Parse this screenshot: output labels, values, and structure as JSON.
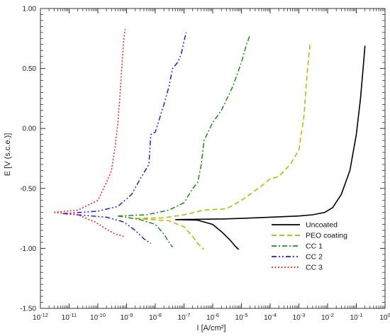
{
  "chart_data": {
    "type": "line",
    "title": "",
    "xlabel": "I [A/cm²]",
    "ylabel": "E [V (s.c.e.)]",
    "xscale": "log",
    "xlim": [
      1e-12,
      1
    ],
    "ylim": [
      -1.5,
      1.0
    ],
    "grid": false,
    "legend_position": "lower-right",
    "x_tick_labels": [
      "10-12",
      "10-11",
      "10-10",
      "10-9",
      "10-8",
      "10-7",
      "10-6",
      "10-5",
      "10-4",
      "10-3",
      "10-2",
      "10-1",
      "100"
    ],
    "y_tick_labels": [
      "1.00",
      "0.50",
      "0.00",
      "-0.50",
      "-1.00",
      "-1.50"
    ],
    "y_tick_values": [
      1.0,
      0.5,
      0.0,
      -0.5,
      -1.0,
      -1.5
    ],
    "series": [
      {
        "name": "Uncoated",
        "color": "#000000",
        "dash": "solid",
        "points": [
          [
            5e-08,
            -0.76
          ],
          [
            2e-06,
            -0.755
          ],
          [
            1e-05,
            -0.75
          ],
          [
            0.0001,
            -0.74
          ],
          [
            0.001,
            -0.73
          ],
          [
            0.003,
            -0.72
          ],
          [
            0.008,
            -0.7
          ],
          [
            0.015,
            -0.66
          ],
          [
            0.03,
            -0.55
          ],
          [
            0.06,
            -0.35
          ],
          [
            0.1,
            -0.05
          ],
          [
            0.14,
            0.25
          ],
          [
            0.18,
            0.55
          ],
          [
            0.2,
            0.69
          ]
        ],
        "cathodic": [
          [
            5e-08,
            -0.76
          ],
          [
            3e-07,
            -0.765
          ],
          [
            1e-06,
            -0.8
          ],
          [
            2e-06,
            -0.86
          ],
          [
            4e-06,
            -0.93
          ],
          [
            6e-06,
            -0.98
          ],
          [
            8e-06,
            -1.01
          ]
        ]
      },
      {
        "name": "PEO coating",
        "color": "#b5b500",
        "dash": "dashed",
        "points": [
          [
            2e-09,
            -0.75
          ],
          [
            2e-08,
            -0.745
          ],
          [
            1e-07,
            -0.72
          ],
          [
            5e-07,
            -0.68
          ],
          [
            3e-06,
            -0.67
          ],
          [
            1e-05,
            -0.6
          ],
          [
            5e-05,
            -0.48
          ],
          [
            0.0001,
            -0.42
          ],
          [
            0.0002,
            -0.4
          ],
          [
            0.0005,
            -0.3
          ],
          [
            0.001,
            -0.18
          ],
          [
            0.0015,
            0.1
          ],
          [
            0.002,
            0.5
          ],
          [
            0.0025,
            0.72
          ]
        ],
        "cathodic": [
          [
            2e-09,
            -0.75
          ],
          [
            3e-08,
            -0.77
          ],
          [
            1e-07,
            -0.82
          ],
          [
            2e-07,
            -0.9
          ],
          [
            3e-07,
            -0.96
          ],
          [
            5e-07,
            -1.01
          ]
        ]
      },
      {
        "name": "CC 1",
        "color": "#1a8a1a",
        "dash": "dashdot",
        "points": [
          [
            5e-10,
            -0.73
          ],
          [
            5e-09,
            -0.72
          ],
          [
            3e-08,
            -0.68
          ],
          [
            1e-07,
            -0.62
          ],
          [
            2e-07,
            -0.5
          ],
          [
            3e-07,
            -0.45
          ],
          [
            4e-07,
            -0.3
          ],
          [
            5e-07,
            -0.1
          ],
          [
            1e-06,
            0.05
          ],
          [
            2e-06,
            0.15
          ],
          [
            5e-06,
            0.35
          ],
          [
            1e-05,
            0.55
          ],
          [
            1.5e-05,
            0.7
          ],
          [
            2e-05,
            0.78
          ]
        ],
        "cathodic": [
          [
            5e-10,
            -0.73
          ],
          [
            3e-09,
            -0.76
          ],
          [
            1e-08,
            -0.8
          ],
          [
            2e-08,
            -0.88
          ],
          [
            3e-08,
            -0.95
          ],
          [
            4e-08,
            -0.99
          ]
        ]
      },
      {
        "name": "CC 2",
        "color": "#1f1fe0",
        "dash": "dashdotdot",
        "points": [
          [
            6e-12,
            -0.71
          ],
          [
            1e-10,
            -0.69
          ],
          [
            5e-10,
            -0.65
          ],
          [
            1.5e-09,
            -0.55
          ],
          [
            3e-09,
            -0.42
          ],
          [
            6e-09,
            -0.3
          ],
          [
            7e-09,
            -0.05
          ],
          [
            1e-08,
            -0.03
          ],
          [
            2e-08,
            0.2
          ],
          [
            3e-08,
            0.35
          ],
          [
            4e-08,
            0.5
          ],
          [
            6e-08,
            0.55
          ],
          [
            8e-08,
            0.62
          ],
          [
            1e-07,
            0.73
          ],
          [
            1.2e-07,
            0.8
          ]
        ],
        "cathodic": [
          [
            6e-12,
            -0.71
          ],
          [
            2e-10,
            -0.74
          ],
          [
            8e-10,
            -0.78
          ],
          [
            2e-09,
            -0.85
          ],
          [
            4e-09,
            -0.92
          ],
          [
            7e-09,
            -0.96
          ]
        ]
      },
      {
        "name": "CC 3",
        "color": "#ff1a1a",
        "dash": "dotted",
        "points": [
          [
            3e-12,
            -0.7
          ],
          [
            2e-11,
            -0.68
          ],
          [
            1e-10,
            -0.6
          ],
          [
            2e-10,
            -0.45
          ],
          [
            3e-10,
            -0.35
          ],
          [
            4e-10,
            -0.15
          ],
          [
            5e-10,
            0.05
          ],
          [
            6e-10,
            0.3
          ],
          [
            7e-10,
            0.55
          ],
          [
            8e-10,
            0.75
          ],
          [
            9e-10,
            0.83
          ]
        ],
        "cathodic": [
          [
            3e-12,
            -0.7
          ],
          [
            2e-11,
            -0.72
          ],
          [
            8e-11,
            -0.78
          ],
          [
            2e-10,
            -0.84
          ],
          [
            4e-10,
            -0.88
          ],
          [
            8e-10,
            -0.9
          ]
        ]
      }
    ]
  }
}
